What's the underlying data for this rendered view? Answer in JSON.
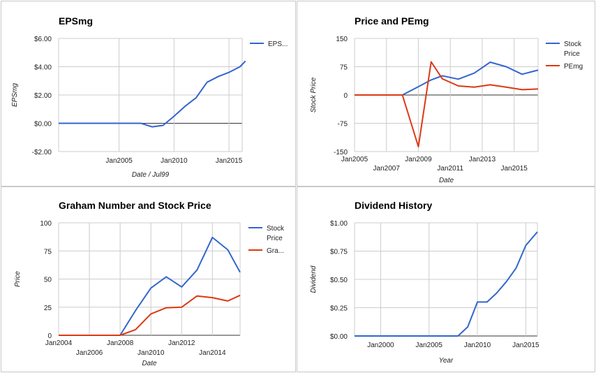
{
  "colors": {
    "blue": "#3366cc",
    "red": "#dc3912",
    "grid": "#cccccc",
    "zero": "#333333"
  },
  "chart_data": [
    {
      "type": "line",
      "title": "EPSmg",
      "xlabel": "Date / Jul99",
      "ylabel": "EPSmg",
      "xlim": [
        1999.5,
        2016.2
      ],
      "ylim": [
        -2,
        6
      ],
      "x_ticks": [
        {
          "label": "Jan2005",
          "x": 2005
        },
        {
          "label": "Jan2010",
          "x": 2010
        },
        {
          "label": "Jan2015",
          "x": 2015
        }
      ],
      "y_ticks": [
        {
          "label": "$6.00",
          "y": 6
        },
        {
          "label": "$4.00",
          "y": 4
        },
        {
          "label": "$2.00",
          "y": 2
        },
        {
          "label": "$0.00",
          "y": 0
        },
        {
          "label": "-$2.00",
          "y": -2
        }
      ],
      "legend_position": "right",
      "series": [
        {
          "name": "EPS...",
          "color": "blue",
          "x": [
            1999.5,
            2001,
            2003,
            2005,
            2007,
            2008,
            2009,
            2010,
            2011,
            2012,
            2013,
            2014,
            2015,
            2016,
            2016.5
          ],
          "values": [
            0,
            0,
            0,
            0,
            0,
            -0.25,
            -0.15,
            0.5,
            1.2,
            1.8,
            2.9,
            3.3,
            3.6,
            4.0,
            4.4
          ]
        }
      ]
    },
    {
      "type": "line",
      "title": "Price and PEmg",
      "xlabel": "Date",
      "ylabel": "Stock Price",
      "xlim": [
        2005,
        2016.5
      ],
      "ylim": [
        -150,
        150
      ],
      "x_ticks": [
        {
          "label": "Jan2005",
          "x": 2005,
          "row": 1
        },
        {
          "label": "Jan2007",
          "x": 2007,
          "row": 2
        },
        {
          "label": "Jan2009",
          "x": 2009,
          "row": 1
        },
        {
          "label": "Jan2011",
          "x": 2011,
          "row": 2
        },
        {
          "label": "Jan2013",
          "x": 2013,
          "row": 1
        },
        {
          "label": "Jan2015",
          "x": 2015,
          "row": 2
        }
      ],
      "y_ticks": [
        {
          "label": "150",
          "y": 150
        },
        {
          "label": "75",
          "y": 75
        },
        {
          "label": "0",
          "y": 0
        },
        {
          "label": "-75",
          "y": -75
        },
        {
          "label": "-150",
          "y": -150
        }
      ],
      "legend_position": "right",
      "series": [
        {
          "name": "Stock Price",
          "color": "blue",
          "x": [
            2005,
            2008,
            2009,
            2009.8,
            2010.5,
            2011.5,
            2012.5,
            2013.5,
            2014.5,
            2015.5,
            2016.5
          ],
          "values": [
            0,
            0,
            22,
            40,
            51,
            42,
            58,
            87,
            75,
            55,
            66
          ]
        },
        {
          "name": "PEmg",
          "color": "red",
          "x": [
            2005,
            2008,
            2009,
            2009.8,
            2010.5,
            2011.5,
            2012.5,
            2013.5,
            2014.5,
            2015.5,
            2016.5
          ],
          "values": [
            0,
            0,
            -137,
            88,
            43,
            24,
            21,
            27,
            21,
            14,
            16
          ]
        }
      ]
    },
    {
      "type": "line",
      "title": "Graham Number and Stock Price",
      "xlabel": "Date",
      "ylabel": "Price",
      "xlim": [
        2004,
        2015.8
      ],
      "ylim": [
        0,
        100
      ],
      "x_ticks": [
        {
          "label": "Jan2004",
          "x": 2004,
          "row": 1
        },
        {
          "label": "Jan2006",
          "x": 2006,
          "row": 2
        },
        {
          "label": "Jan2008",
          "x": 2008,
          "row": 1
        },
        {
          "label": "Jan2010",
          "x": 2010,
          "row": 2
        },
        {
          "label": "Jan2012",
          "x": 2012,
          "row": 1
        },
        {
          "label": "Jan2014",
          "x": 2014,
          "row": 2
        }
      ],
      "y_ticks": [
        {
          "label": "100",
          "y": 100
        },
        {
          "label": "75",
          "y": 75
        },
        {
          "label": "50",
          "y": 50
        },
        {
          "label": "25",
          "y": 25
        },
        {
          "label": "0",
          "y": 0
        }
      ],
      "legend_position": "right",
      "series": [
        {
          "name": "Stock Price",
          "color": "blue",
          "x": [
            2004,
            2007,
            2008,
            2009,
            2010,
            2011,
            2012,
            2013,
            2014,
            2015,
            2015.8
          ],
          "values": [
            0,
            0,
            0,
            22,
            42,
            52,
            43,
            58,
            87,
            76,
            56
          ]
        },
        {
          "name": "Gra...",
          "color": "red",
          "x": [
            2004,
            2007,
            2008,
            2009,
            2010,
            2011,
            2012,
            2013,
            2014,
            2015,
            2015.8
          ],
          "values": [
            0,
            0,
            0,
            5,
            19,
            24.5,
            25,
            35,
            33.5,
            30.5,
            35.5
          ]
        }
      ]
    },
    {
      "type": "line",
      "title": "Dividend History",
      "xlabel": "Year",
      "ylabel": "Dividend",
      "xlim": [
        1997.3,
        2016.2
      ],
      "ylim": [
        0,
        1
      ],
      "x_ticks": [
        {
          "label": "Jan2000",
          "x": 2000
        },
        {
          "label": "Jan2005",
          "x": 2005
        },
        {
          "label": "Jan2010",
          "x": 2010
        },
        {
          "label": "Jan2015",
          "x": 2015
        }
      ],
      "y_ticks": [
        {
          "label": "$1.00",
          "y": 1
        },
        {
          "label": "$0.75",
          "y": 0.75
        },
        {
          "label": "$0.50",
          "y": 0.5
        },
        {
          "label": "$0.25",
          "y": 0.25
        },
        {
          "label": "$0.00",
          "y": 0
        }
      ],
      "series": [
        {
          "name": "",
          "color": "blue",
          "x": [
            1997.3,
            2000,
            2005,
            2008,
            2009,
            2010,
            2011,
            2012,
            2013,
            2014,
            2015,
            2016.2
          ],
          "values": [
            0,
            0,
            0,
            0,
            0.08,
            0.3,
            0.3,
            0.38,
            0.48,
            0.6,
            0.8,
            0.92
          ]
        }
      ]
    }
  ]
}
